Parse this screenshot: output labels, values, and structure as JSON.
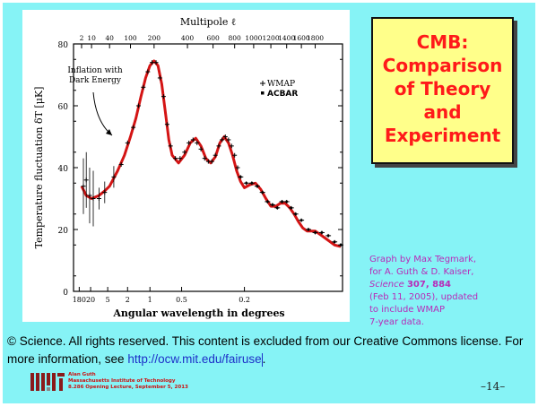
{
  "slide": {
    "title_lines": [
      "CMB:",
      "Comparison",
      "of Theory",
      "and",
      "Experiment"
    ],
    "credit": {
      "line1": "Graph by Max Tegmark,",
      "line2": "for A. Guth & D. Kaiser,",
      "journal": "Science",
      "volume": "307",
      "page": "884",
      "line4": "(Feb 11, 2005), updated",
      "line5": "to include WMAP",
      "line6": "7-year data."
    },
    "copyright_text": "© Science. All rights reserved. This content is excluded from our Creative Commons license. For more information, see",
    "copyright_link": "http://ocw.mit.edu/fairuse",
    "copyright_end": ".",
    "footer": {
      "name": "Alan Guth",
      "institution": "Massachusetts Institute of Technology",
      "course": "8.286 Opening Lecture, September 5, 2013"
    },
    "page_number": "–14–"
  },
  "chart_data": {
    "type": "line",
    "title": "Multipole ℓ",
    "xlabel": "Angular wavelength in degrees",
    "ylabel": "Temperature fluctuation δT  [μK]",
    "x_scale": "sqrt",
    "xlim": [
      0,
      2230
    ],
    "ylim": [
      0,
      80
    ],
    "y_ticks": [
      0,
      20,
      40,
      60,
      80
    ],
    "top_ticks": [
      2,
      10,
      40,
      100,
      200,
      400,
      600,
      800,
      1000,
      1200,
      1400,
      1600,
      1800
    ],
    "bottom_ticks": [
      {
        "label": "180",
        "l": 1
      },
      {
        "label": "20",
        "l": 9
      },
      {
        "label": "5",
        "l": 36
      },
      {
        "label": "2",
        "l": 90
      },
      {
        "label": "1",
        "l": 180
      },
      {
        "label": "0.5",
        "l": 360
      },
      {
        "label": "0.2",
        "l": 900
      }
    ],
    "annotation": {
      "lines": [
        "Inflation with",
        "Dark Energy"
      ]
    },
    "legend": {
      "position": "top-right",
      "items": [
        {
          "marker": "+",
          "name": "WMAP"
        },
        {
          "marker": "▪",
          "name": "ACBAR"
        }
      ]
    },
    "colors": {
      "theory": "#d41414",
      "data": "#000000"
    },
    "series": [
      {
        "name": "Inflation with Dark Energy",
        "kind": "theory",
        "x": [
          2,
          5,
          10,
          20,
          30,
          40,
          60,
          80,
          100,
          120,
          140,
          160,
          180,
          200,
          220,
          240,
          260,
          280,
          300,
          340,
          380,
          420,
          460,
          500,
          540,
          580,
          620,
          660,
          700,
          740,
          780,
          820,
          860,
          900,
          960,
          1020,
          1080,
          1140,
          1200,
          1260,
          1320,
          1380,
          1440,
          1500,
          1560,
          1620,
          1680,
          1740,
          1800,
          1900,
          2000,
          2100,
          2200
        ],
        "values": [
          34,
          31,
          30,
          31,
          32.5,
          34,
          39,
          44,
          50,
          56,
          63,
          69,
          73,
          74.5,
          73,
          67,
          58,
          49,
          44,
          41.5,
          44,
          48,
          49.5,
          47,
          43,
          41.5,
          43.5,
          48,
          50,
          48,
          44,
          39,
          35.5,
          33.5,
          34.5,
          35,
          33,
          30,
          27.5,
          27.5,
          28.5,
          28.5,
          27,
          25,
          22.5,
          20.5,
          19.5,
          19.5,
          19.5,
          18,
          16.5,
          15,
          14.5
        ]
      },
      {
        "name": "WMAP",
        "kind": "data",
        "x": [
          3,
          5,
          8,
          12,
          20,
          30,
          50,
          70,
          90,
          110,
          130,
          150,
          170,
          190,
          210,
          230,
          250,
          270,
          290,
          320,
          350,
          380,
          410,
          440,
          470,
          500,
          530,
          560,
          590,
          620,
          650,
          680,
          710,
          740,
          770,
          800,
          830
        ],
        "values": [
          34,
          36,
          31,
          30,
          30,
          32,
          37,
          41,
          48,
          53,
          60,
          66,
          71,
          74,
          74,
          69,
          63,
          54,
          47,
          43,
          43,
          45,
          48,
          49,
          48,
          46,
          43,
          42,
          42,
          44,
          47,
          49,
          50,
          49,
          47,
          44,
          40
        ]
      },
      {
        "name": "ACBAR",
        "kind": "data",
        "x": [
          860,
          920,
          980,
          1040,
          1100,
          1160,
          1220,
          1280,
          1340,
          1400,
          1460,
          1520,
          1600,
          1700,
          1800,
          1900,
          2000,
          2100,
          2200
        ],
        "values": [
          37,
          35,
          35,
          34,
          32,
          29,
          28,
          27,
          29,
          29,
          27,
          25,
          23,
          20,
          19,
          19,
          18,
          16,
          15
        ]
      }
    ]
  }
}
